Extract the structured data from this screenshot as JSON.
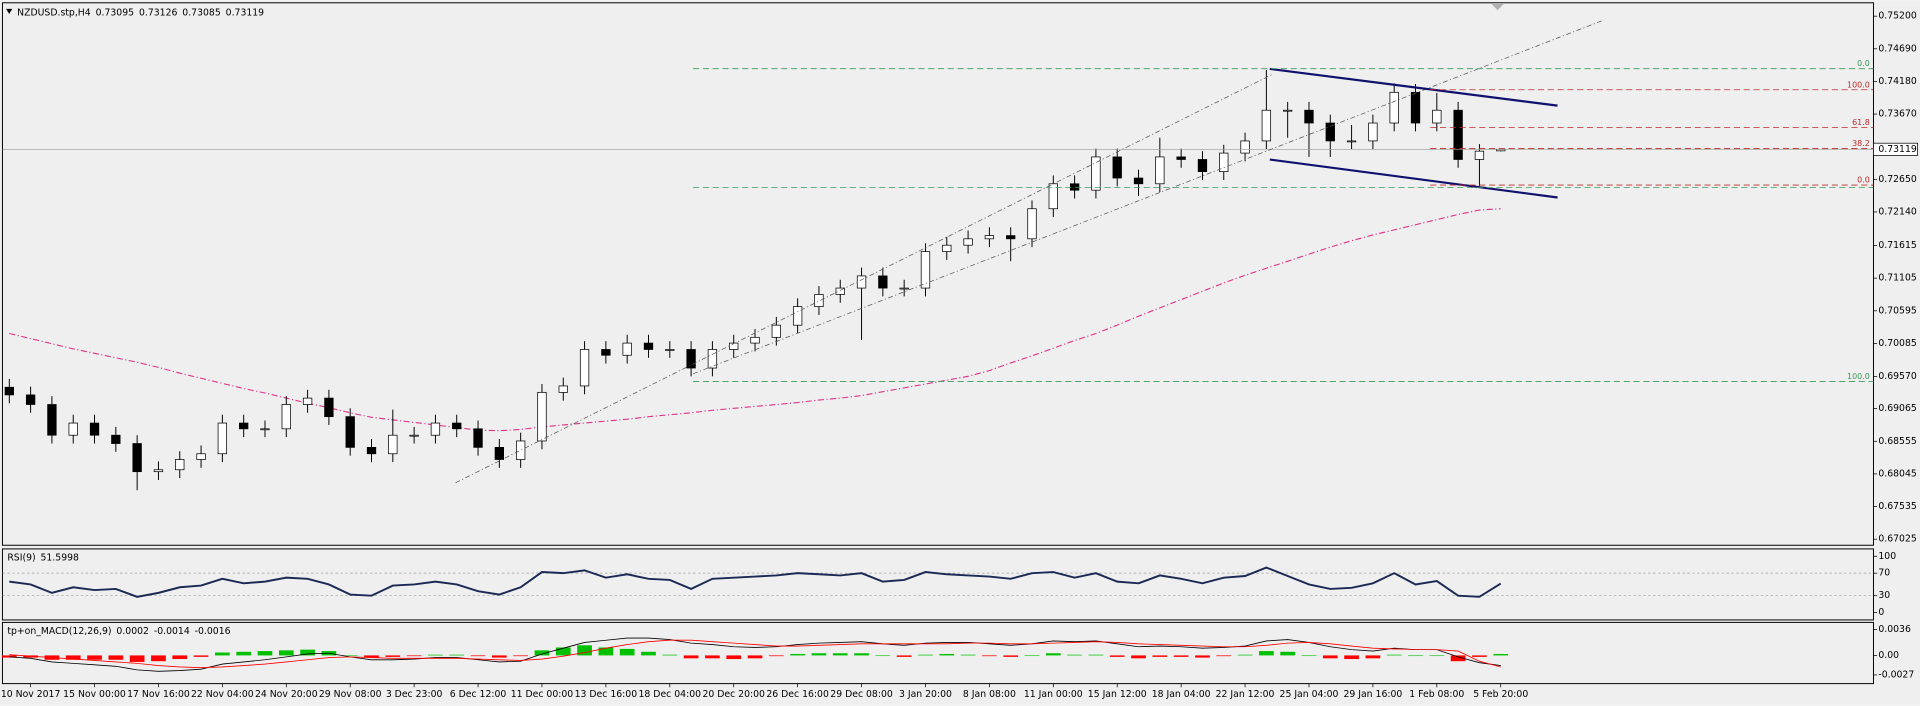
{
  "chart_data": [
    {
      "type": "candlestick",
      "title": "NZDUSD.stp,H4",
      "categories": [
        null,
        "10 Nov 2017",
        null,
        null,
        "15 Nov 00:00",
        null,
        null,
        "17 Nov 16:00",
        null,
        null,
        "22 Nov 04:00",
        null,
        null,
        "24 Nov 20:00",
        null,
        null,
        "29 Nov 08:00",
        null,
        null,
        "3 Dec 23:00",
        null,
        null,
        "6 Dec 12:00",
        null,
        null,
        "11 Dec 00:00",
        null,
        null,
        "13 Dec 16:00",
        null,
        null,
        "18 Dec 04:00",
        null,
        null,
        "20 Dec 20:00",
        null,
        null,
        "26 Dec 16:00",
        null,
        null,
        "29 Dec 08:00",
        null,
        null,
        "3 Jan 20:00",
        null,
        null,
        "8 Jan 08:00",
        null,
        null,
        "11 Jan 00:00",
        null,
        null,
        "15 Jan 12:00",
        null,
        null,
        "18 Jan 04:00",
        null,
        null,
        "22 Jan 12:00",
        null,
        null,
        "25 Jan 04:00",
        null,
        null,
        "29 Jan 16:00",
        null,
        null,
        "1 Feb 08:00",
        null,
        null,
        "5 Feb 20:00"
      ],
      "open": [
        0.694,
        0.6928,
        0.6913,
        0.6865,
        0.6884,
        0.6865,
        0.6852,
        0.6808,
        0.6811,
        0.6827,
        0.6836,
        0.6884,
        0.6875,
        0.6875,
        0.6913,
        0.6923,
        0.6894,
        0.6846,
        0.6836,
        0.6865,
        0.6865,
        0.6884,
        0.6875,
        0.6846,
        0.6827,
        0.6856,
        0.6932,
        0.6942,
        0.6999,
        0.699,
        0.7009,
        0.6999,
        0.6999,
        0.697,
        0.6999,
        0.7009,
        0.7018,
        0.7037,
        0.7066,
        0.7085,
        0.7095,
        0.7114,
        0.7095,
        0.7095,
        0.7152,
        0.7162,
        0.7172,
        0.7177,
        0.7172,
        0.7219,
        0.7258,
        0.7248,
        0.73,
        0.7267,
        0.7258,
        0.73,
        0.7296,
        0.7277,
        0.7306,
        0.7325,
        0.7373,
        0.7373,
        0.7353,
        0.7325,
        0.7325,
        0.7353,
        0.7401,
        0.7353,
        0.7373,
        0.7296,
        0.73095
      ],
      "high": [
        0.6953,
        0.6941,
        0.6926,
        0.6897,
        0.6897,
        0.6878,
        0.6865,
        0.6824,
        0.684,
        0.6849,
        0.6897,
        0.6897,
        0.6888,
        0.6926,
        0.6936,
        0.6936,
        0.6907,
        0.6859,
        0.6905,
        0.6878,
        0.6897,
        0.6897,
        0.6888,
        0.6859,
        0.6869,
        0.6945,
        0.6955,
        0.7012,
        0.7012,
        0.7022,
        0.7022,
        0.7012,
        0.7012,
        0.7012,
        0.7022,
        0.7031,
        0.705,
        0.7079,
        0.7098,
        0.7108,
        0.7127,
        0.7127,
        0.7108,
        0.7165,
        0.7175,
        0.7185,
        0.719,
        0.719,
        0.7232,
        0.7271,
        0.7271,
        0.7313,
        0.7313,
        0.728,
        0.733,
        0.7313,
        0.7309,
        0.7319,
        0.7338,
        0.7436,
        0.7386,
        0.7386,
        0.7366,
        0.735,
        0.7366,
        0.7415,
        0.7414,
        0.74,
        0.7386,
        0.732,
        0.73126
      ],
      "low": [
        0.6915,
        0.69,
        0.6852,
        0.6852,
        0.6852,
        0.6839,
        0.6779,
        0.6795,
        0.6798,
        0.6814,
        0.6823,
        0.6862,
        0.6862,
        0.6862,
        0.69,
        0.6881,
        0.6833,
        0.6823,
        0.6823,
        0.6852,
        0.6852,
        0.6862,
        0.6833,
        0.6814,
        0.6814,
        0.6843,
        0.6919,
        0.6929,
        0.6977,
        0.6977,
        0.6986,
        0.6986,
        0.6957,
        0.6957,
        0.6986,
        0.6996,
        0.7005,
        0.7024,
        0.7053,
        0.7072,
        0.7014,
        0.7082,
        0.7082,
        0.7082,
        0.7139,
        0.7149,
        0.7159,
        0.7137,
        0.7159,
        0.7206,
        0.7235,
        0.7235,
        0.7254,
        0.7239,
        0.7245,
        0.7283,
        0.7264,
        0.7264,
        0.7293,
        0.7312,
        0.733,
        0.73,
        0.73,
        0.7312,
        0.7312,
        0.734,
        0.734,
        0.734,
        0.7283,
        0.7254,
        0.73085
      ],
      "close": [
        0.6928,
        0.6913,
        0.6865,
        0.6884,
        0.6865,
        0.6852,
        0.6808,
        0.6811,
        0.6827,
        0.6836,
        0.6884,
        0.6875,
        0.6875,
        0.6913,
        0.6923,
        0.6894,
        0.6846,
        0.6836,
        0.6865,
        0.6865,
        0.6884,
        0.6875,
        0.6846,
        0.6827,
        0.6856,
        0.6932,
        0.6942,
        0.6999,
        0.699,
        0.7009,
        0.6999,
        0.6999,
        0.697,
        0.6999,
        0.7009,
        0.7018,
        0.7037,
        0.7066,
        0.7085,
        0.7095,
        0.7114,
        0.7095,
        0.7095,
        0.7152,
        0.7162,
        0.7172,
        0.7177,
        0.7172,
        0.7219,
        0.7258,
        0.7248,
        0.73,
        0.7267,
        0.7258,
        0.73,
        0.7296,
        0.7277,
        0.7306,
        0.7325,
        0.7373,
        0.7373,
        0.7353,
        0.7325,
        0.7325,
        0.7353,
        0.7401,
        0.7353,
        0.7373,
        0.7296,
        0.7309,
        0.73119
      ],
      "up_color": "#ffffff",
      "down_color": "#000000",
      "wick_color": "#000000",
      "series": [
        {
          "color": "#e0308a",
          "values": [
            0.7024,
            0.7016,
            0.7008,
            0.7,
            0.6993,
            0.6986,
            0.6979,
            0.6971,
            0.6962,
            0.6954,
            0.6946,
            0.6938,
            0.6931,
            0.6923,
            0.6915,
            0.6908,
            0.69,
            0.6893,
            0.6889,
            0.6885,
            0.6881,
            0.6877,
            0.6873,
            0.6872,
            0.6874,
            0.6878,
            0.6881,
            0.6884,
            0.6887,
            0.689,
            0.6894,
            0.6897,
            0.69,
            0.6904,
            0.6907,
            0.691,
            0.6913,
            0.6916,
            0.692,
            0.6923,
            0.6927,
            0.6933,
            0.6939,
            0.6945,
            0.6951,
            0.6957,
            0.6966,
            0.6978,
            0.6989,
            0.7001,
            0.7013,
            0.7024,
            0.7037,
            0.7051,
            0.7064,
            0.7077,
            0.709,
            0.7103,
            0.7115,
            0.7126,
            0.7137,
            0.7148,
            0.7159,
            0.7169,
            0.7178,
            0.7186,
            0.7194,
            0.7202,
            0.721,
            0.7217,
            0.7219
          ]
        }
      ],
      "fib_levels": [
        {
          "label": "0.0",
          "value": 0.7438,
          "color": "#3a9a5a"
        },
        {
          "value": 0.7252,
          "color": "#3a9a5a"
        },
        {
          "label": "100.0",
          "value": 0.6949,
          "color": "#3a9a5a"
        },
        {
          "label": "100.0",
          "value": 0.7405,
          "color": "#c0282a"
        },
        {
          "label": "61.8",
          "value": 0.7346,
          "color": "#c0282a"
        },
        {
          "label": "38.2",
          "value": 0.7313,
          "color": "#c0282a"
        },
        {
          "label": "0.0",
          "value": 0.7256,
          "color": "#c0282a"
        }
      ],
      "ylim": [
        0.6693,
        0.7539
      ],
      "yticks": [
        {
          "value": 0.752,
          "label": "0.75200"
        },
        {
          "value": 0.7469,
          "label": "0.74690"
        },
        {
          "value": 0.7418,
          "label": "0.74180"
        },
        {
          "value": 0.7367,
          "label": "0.73670"
        },
        {
          "value": 0.7265,
          "label": "0.72650"
        },
        {
          "value": 0.7214,
          "label": "0.72140"
        },
        0.71615,
        0.71105,
        0.70595,
        0.70085,
        {
          "value": 0.6957,
          "label": "0.69570"
        },
        0.69065,
        0.68555,
        0.68045,
        0.67535,
        0.67025
      ]
    },
    {
      "type": "line",
      "title": "RSI(9)",
      "series": [
        {
          "color": "#1b2a55",
          "values": [
            55,
            50,
            35,
            45,
            40,
            42,
            28,
            35,
            45,
            48,
            60,
            52,
            55,
            62,
            60,
            50,
            32,
            30,
            48,
            50,
            55,
            50,
            38,
            32,
            45,
            72,
            70,
            75,
            62,
            68,
            60,
            58,
            42,
            60,
            62,
            64,
            66,
            70,
            68,
            66,
            70,
            55,
            58,
            72,
            68,
            66,
            64,
            60,
            70,
            72,
            62,
            70,
            55,
            52,
            66,
            60,
            52,
            62,
            65,
            80,
            65,
            50,
            42,
            44,
            52,
            70,
            50,
            56,
            30,
            28,
            51.5998
          ]
        }
      ],
      "levels": [
        70,
        30
      ],
      "ylim": [
        -10.9,
        110.9
      ],
      "yticks": [
        100,
        70,
        30,
        0
      ]
    },
    {
      "type": "macd",
      "title": "tp+on_MACD(12,26,9)",
      "hist": {
        "up_color": "#00c000",
        "down_color": "#ff0000",
        "values": [
          -0.0003,
          -0.0003,
          -0.0006,
          -0.0006,
          -0.0006,
          -0.0006,
          -0.0009,
          -0.0008,
          -0.0005,
          -0.0002,
          0.0004,
          0.0005,
          0.0006,
          0.0007,
          0.0008,
          0.0006,
          0,
          -0.0003,
          -0.0002,
          -0.0001,
          0.0001,
          0.0001,
          -0.0001,
          -0.0003,
          -0.0001,
          0.0007,
          0.0011,
          0.0014,
          0.0011,
          0.0009,
          0.0005,
          0.0001,
          -0.0004,
          -0.0004,
          -0.0005,
          -0.0004,
          -0.0001,
          0.0002,
          0.0003,
          0.0003,
          0.0003,
          0,
          -0.0002,
          0.0001,
          0.0002,
          0.0001,
          -0.0001,
          -0.0002,
          0,
          0.0003,
          0.0001,
          0.0001,
          -0.0002,
          -0.0004,
          -0.0002,
          -0.0002,
          -0.0003,
          -0.0001,
          0.0001,
          0.0006,
          0.0005,
          0,
          -0.0004,
          -0.0005,
          -0.0004,
          0.0001,
          0,
          0,
          -0.0008,
          -0.0002,
          0.0002
        ]
      },
      "series": [
        {
          "color": "#000000",
          "values": [
            -0.0002,
            -0.0004,
            -0.0009,
            -0.0011,
            -0.0013,
            -0.0015,
            -0.002,
            -0.0022,
            -0.0021,
            -0.0019,
            -0.0012,
            -0.0009,
            -0.0006,
            -0.0002,
            0.0002,
            0.0003,
            -0.0002,
            -0.0006,
            -0.0006,
            -0.0005,
            -0.0003,
            -0.0003,
            -0.0006,
            -0.0009,
            -0.0008,
            0.0002,
            0.001,
            0.0018,
            0.0021,
            0.0024,
            0.0024,
            0.0022,
            0.0017,
            0.0015,
            0.0012,
            0.0011,
            0.0012,
            0.0015,
            0.0017,
            0.0018,
            0.0019,
            0.0016,
            0.0014,
            0.0017,
            0.0018,
            0.0018,
            0.0016,
            0.0014,
            0.0016,
            0.002,
            0.0019,
            0.002,
            0.0016,
            0.0012,
            0.0013,
            0.0012,
            0.001,
            0.0011,
            0.0013,
            0.002,
            0.0022,
            0.0018,
            0.0012,
            0.0008,
            0.0006,
            0.001,
            0.0008,
            0.0008,
            -0.0002,
            -0.001,
            -0.0014
          ]
        },
        {
          "color": "#ff0000",
          "values": [
            0.0001,
            -0.0001,
            -0.0003,
            -0.0005,
            -0.0007,
            -0.0009,
            -0.0011,
            -0.0014,
            -0.0016,
            -0.0017,
            -0.0016,
            -0.0014,
            -0.0012,
            -0.0009,
            -0.0006,
            -0.0003,
            -0.0002,
            -0.0003,
            -0.0004,
            -0.0004,
            -0.0004,
            -0.0004,
            -0.0005,
            -0.0006,
            -0.0007,
            -0.0005,
            -0.0001,
            0.0004,
            0.001,
            0.0015,
            0.0019,
            0.0021,
            0.0021,
            0.0019,
            0.0017,
            0.0015,
            0.0013,
            0.0013,
            0.0014,
            0.0015,
            0.0016,
            0.0016,
            0.0016,
            0.0016,
            0.0016,
            0.0017,
            0.0017,
            0.0016,
            0.0016,
            0.0017,
            0.0018,
            0.0019,
            0.0018,
            0.0016,
            0.0015,
            0.0014,
            0.0013,
            0.0012,
            0.0012,
            0.0014,
            0.0017,
            0.0018,
            0.0016,
            0.0013,
            0.001,
            0.0009,
            0.0008,
            0.0008,
            0.0006,
            -0.0008,
            -0.0016
          ]
        }
      ],
      "ylim": [
        -0.0039,
        0.0044
      ],
      "yticks": [
        0.0036,
        {
          "value": 0,
          "label": "0.00"
        },
        -0.0027
      ]
    }
  ]
}
